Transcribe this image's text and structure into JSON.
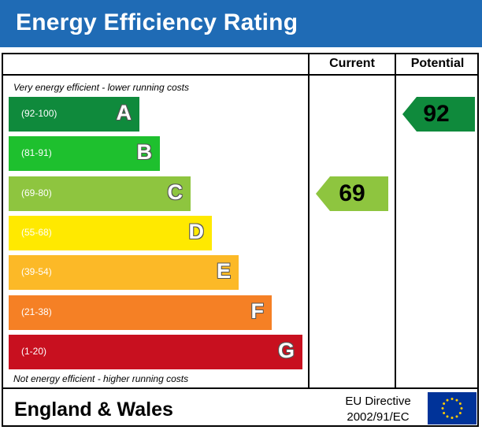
{
  "title": "Energy Efficiency Rating",
  "columns": {
    "current": "Current",
    "potential": "Potential"
  },
  "notes": {
    "top": "Very energy efficient - lower running costs",
    "bottom": "Not energy efficient - higher running costs"
  },
  "colors": {
    "header": "#1f6bb5",
    "A": "#0f8a3c",
    "B": "#1ec02e",
    "C": "#8ec53f",
    "D": "#ffe900",
    "E": "#fcb927",
    "F": "#f58025",
    "G": "#c8101f",
    "current_arrow": "#8ec53f",
    "potential_arrow": "#0f8a3c"
  },
  "footer": {
    "region": "England & Wales",
    "directive_line1": "EU Directive",
    "directive_line2": "2002/91/EC"
  },
  "chart_data": {
    "type": "bar",
    "title": "Energy Efficiency Rating",
    "categories": [
      "A",
      "B",
      "C",
      "D",
      "E",
      "F",
      "G"
    ],
    "ranges": [
      "(92-100)",
      "(81-91)",
      "(69-80)",
      "(55-68)",
      "(39-54)",
      "(21-38)",
      "(1-20)"
    ],
    "current": {
      "value": 69,
      "band": "C"
    },
    "potential": {
      "value": 92,
      "band": "A"
    }
  }
}
